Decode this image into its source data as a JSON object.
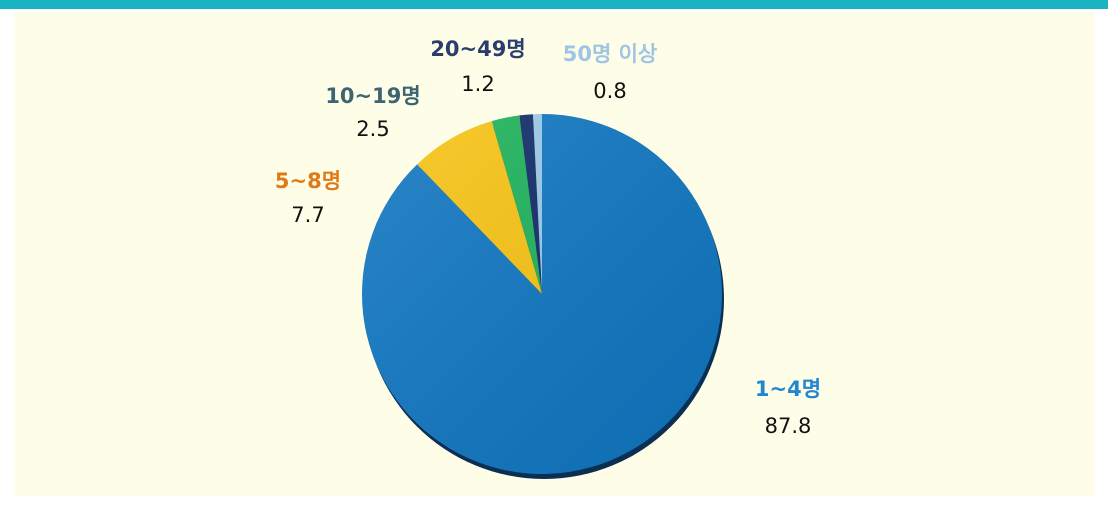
{
  "chart_data": {
    "type": "pie",
    "categories": [
      "1~4명",
      "5~8명",
      "10~19명",
      "20~49명",
      "50명 이상"
    ],
    "values": [
      87.8,
      7.7,
      2.5,
      1.2,
      0.8
    ],
    "colors": [
      "#0f76c2",
      "#f8c413",
      "#1db35b",
      "#112a68",
      "#9ccaea"
    ],
    "label_colors": [
      "#1f86d0",
      "#e07a18",
      "#3c6472",
      "#2a3e6e",
      "#9fc5e5"
    ]
  }
}
